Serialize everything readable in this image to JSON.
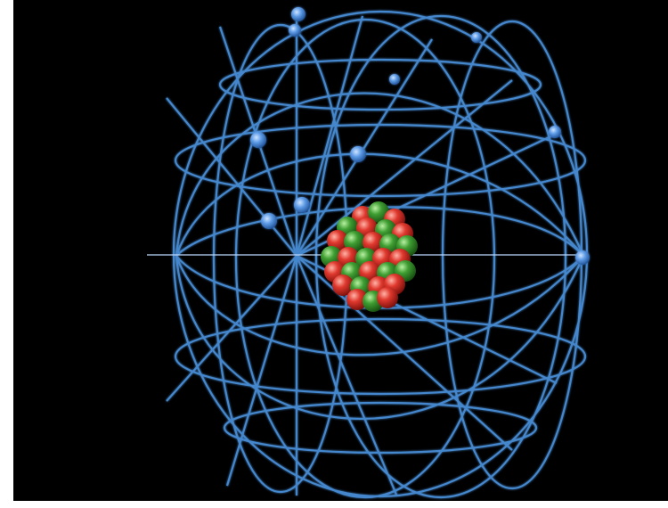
{
  "scene": {
    "subject": "atom-model",
    "colors": {
      "background": "#000000",
      "frame": "#ffffff",
      "wire": "#4a8fd8",
      "electron": "#4f92e0",
      "proton": "#d8332b",
      "neutron": "#3e9a34"
    }
  }
}
